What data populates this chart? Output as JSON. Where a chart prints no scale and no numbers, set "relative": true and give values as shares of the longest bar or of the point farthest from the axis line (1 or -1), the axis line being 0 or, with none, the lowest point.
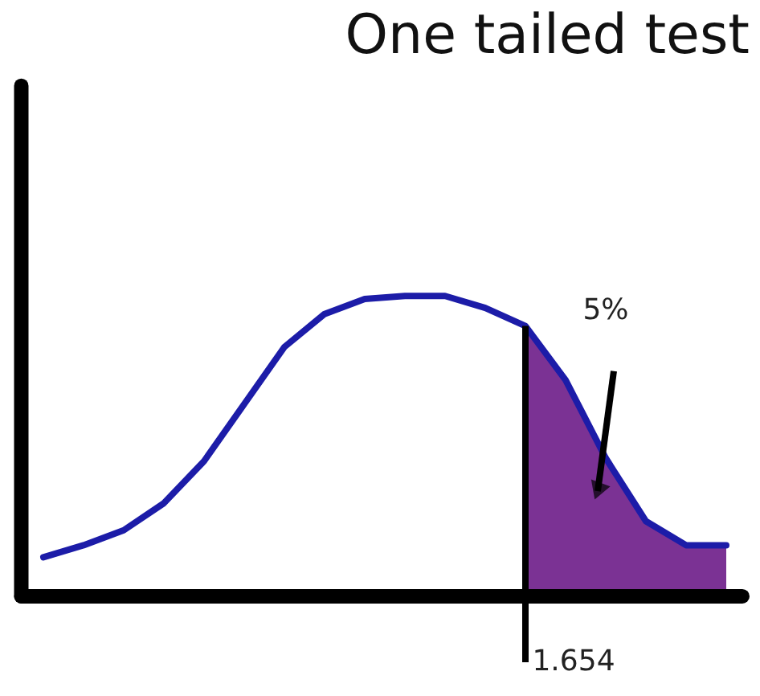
{
  "chart_data": {
    "type": "line",
    "title": "One tailed test",
    "relative": true,
    "categories": [
      null,
      null,
      null,
      null,
      null,
      null,
      null,
      null,
      null,
      null,
      null,
      null,
      null,
      null,
      null,
      null,
      null,
      null
    ],
    "series": [
      {
        "color": "#1c1ca8",
        "values": [
          0.13,
          0.17,
          0.22,
          0.31,
          0.45,
          0.64,
          0.83,
          0.94,
          0.99,
          1.0,
          1.0,
          0.96,
          0.9,
          0.72,
          0.46,
          0.25,
          0.17,
          0.17
        ]
      },
      {
        "type": "area",
        "color": "#7b3294",
        "values": [
          null,
          null,
          null,
          null,
          null,
          null,
          null,
          null,
          null,
          null,
          null,
          null,
          0.9,
          0.72,
          0.46,
          0.25,
          0.17,
          0.17
        ]
      }
    ],
    "annotations": [
      "5%",
      "1.654"
    ]
  }
}
